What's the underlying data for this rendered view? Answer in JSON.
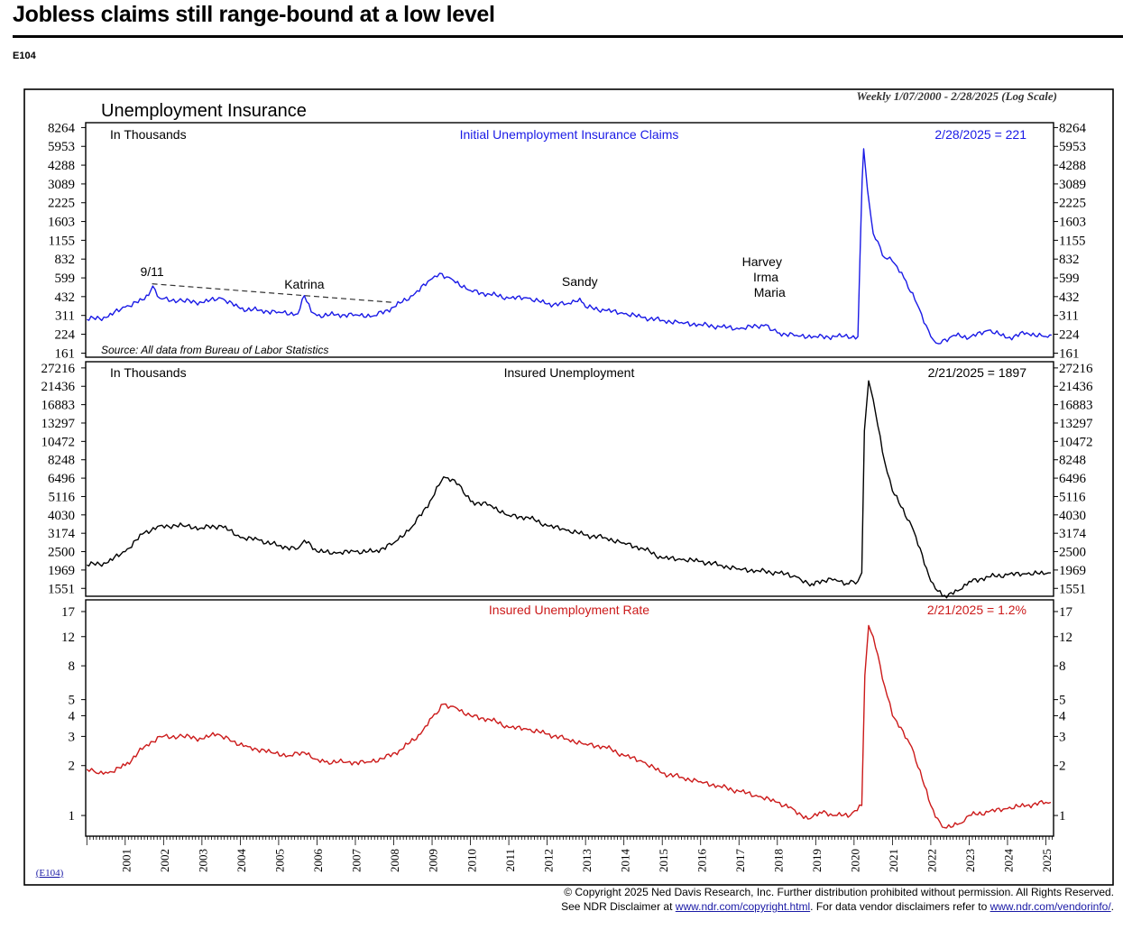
{
  "page": {
    "title": "Jobless claims still range-bound at a low level",
    "code": "E104",
    "code_link": "(E104)"
  },
  "figure": {
    "title": "Unemployment Insurance",
    "subtitle": "Weekly 1/07/2000 - 2/28/2025 (Log Scale)"
  },
  "footer": {
    "line1": "© Copyright 2025 Ned Davis Research, Inc.  Further distribution prohibited without permission.  All Rights Reserved.",
    "line2_prefix": "See NDR Disclaimer at ",
    "link1": "www.ndr.com/copyright.html",
    "line2_middle": ". For data vendor disclaimers refer to ",
    "link2": "www.ndr.com/vendorinfo/",
    "line2_suffix": "."
  },
  "chart_data": [
    {
      "type": "line",
      "title": "Initial Unemployment Insurance Claims",
      "unit_label": "In Thousands",
      "latest": "2/28/2025 = 221",
      "source": "Source: All data from Bureau of Labor Statistics",
      "color": "#1a1ae6",
      "scale": "log",
      "ylim": [
        150,
        9000
      ],
      "yticks": [
        8264,
        5953,
        4288,
        3089,
        2225,
        1603,
        1155,
        832,
        599,
        432,
        311,
        224,
        161
      ],
      "annotations": [
        {
          "label": "9/11",
          "x": 2001.7,
          "y": 540
        },
        {
          "label": "Katrina",
          "x": 2005.67,
          "y": 430
        },
        {
          "label": "Sandy",
          "x": 2012.85,
          "y": 440
        },
        {
          "label": "Harvey",
          "x": 2017.6,
          "y": 290
        },
        {
          "label": "Irma",
          "x": 2017.7,
          "y": 280
        },
        {
          "label": "Maria",
          "x": 2017.8,
          "y": 270
        }
      ],
      "trend_line": [
        [
          2001.7,
          540
        ],
        [
          2008.0,
          390
        ]
      ],
      "series": [
        {
          "name": "Initial Unemployment Insurance Claims",
          "points": [
            [
              2000.0,
              290
            ],
            [
              2000.5,
              300
            ],
            [
              2001.0,
              360
            ],
            [
              2001.5,
              410
            ],
            [
              2001.72,
              520
            ],
            [
              2001.9,
              420
            ],
            [
              2002.5,
              400
            ],
            [
              2003.0,
              390
            ],
            [
              2003.5,
              420
            ],
            [
              2004.0,
              350
            ],
            [
              2004.5,
              340
            ],
            [
              2005.0,
              330
            ],
            [
              2005.5,
              320
            ],
            [
              2005.67,
              440
            ],
            [
              2005.85,
              330
            ],
            [
              2006.0,
              310
            ],
            [
              2006.5,
              315
            ],
            [
              2007.0,
              315
            ],
            [
              2007.5,
              310
            ],
            [
              2008.0,
              360
            ],
            [
              2008.5,
              440
            ],
            [
              2009.0,
              590
            ],
            [
              2009.2,
              650
            ],
            [
              2009.5,
              590
            ],
            [
              2010.0,
              480
            ],
            [
              2010.5,
              450
            ],
            [
              2011.0,
              420
            ],
            [
              2011.5,
              420
            ],
            [
              2012.0,
              380
            ],
            [
              2012.5,
              380
            ],
            [
              2012.85,
              420
            ],
            [
              2013.0,
              360
            ],
            [
              2013.5,
              340
            ],
            [
              2014.0,
              320
            ],
            [
              2014.5,
              300
            ],
            [
              2015.0,
              285
            ],
            [
              2015.5,
              275
            ],
            [
              2016.0,
              265
            ],
            [
              2016.5,
              255
            ],
            [
              2017.0,
              245
            ],
            [
              2017.7,
              265
            ],
            [
              2018.0,
              230
            ],
            [
              2018.5,
              220
            ],
            [
              2019.0,
              215
            ],
            [
              2019.5,
              215
            ],
            [
              2020.1,
              215
            ],
            [
              2020.21,
              3300
            ],
            [
              2020.25,
              5700
            ],
            [
              2020.35,
              2800
            ],
            [
              2020.5,
              1300
            ],
            [
              2020.8,
              850
            ],
            [
              2021.0,
              800
            ],
            [
              2021.3,
              600
            ],
            [
              2021.7,
              350
            ],
            [
              2022.0,
              215
            ],
            [
              2022.2,
              190
            ],
            [
              2022.6,
              220
            ],
            [
              2023.0,
              210
            ],
            [
              2023.5,
              240
            ],
            [
              2024.0,
              210
            ],
            [
              2024.5,
              230
            ],
            [
              2025.0,
              215
            ],
            [
              2025.15,
              221
            ]
          ]
        }
      ]
    },
    {
      "type": "line",
      "title": "Insured Unemployment",
      "unit_label": "In Thousands",
      "latest": "2/21/2025 = 1897",
      "color": "#000000",
      "scale": "log",
      "ylim": [
        1400,
        29500
      ],
      "yticks": [
        27216,
        21436,
        16883,
        13297,
        10472,
        8248,
        6496,
        5116,
        4030,
        3174,
        2500,
        1969,
        1551
      ],
      "series": [
        {
          "name": "Insured Unemployment",
          "points": [
            [
              2000.0,
              2100
            ],
            [
              2000.5,
              2150
            ],
            [
              2001.0,
              2500
            ],
            [
              2001.5,
              3200
            ],
            [
              2001.9,
              3500
            ],
            [
              2002.5,
              3500
            ],
            [
              2003.0,
              3400
            ],
            [
              2003.5,
              3500
            ],
            [
              2004.0,
              3000
            ],
            [
              2004.5,
              2900
            ],
            [
              2005.0,
              2700
            ],
            [
              2005.5,
              2600
            ],
            [
              2005.67,
              2900
            ],
            [
              2006.0,
              2500
            ],
            [
              2006.5,
              2450
            ],
            [
              2007.0,
              2500
            ],
            [
              2007.5,
              2500
            ],
            [
              2008.0,
              2800
            ],
            [
              2008.5,
              3500
            ],
            [
              2009.0,
              5000
            ],
            [
              2009.3,
              6600
            ],
            [
              2009.7,
              6000
            ],
            [
              2010.0,
              4800
            ],
            [
              2010.5,
              4600
            ],
            [
              2011.0,
              4000
            ],
            [
              2011.5,
              3900
            ],
            [
              2012.0,
              3500
            ],
            [
              2012.5,
              3300
            ],
            [
              2013.0,
              3100
            ],
            [
              2013.5,
              3000
            ],
            [
              2014.0,
              2800
            ],
            [
              2014.5,
              2600
            ],
            [
              2015.0,
              2300
            ],
            [
              2015.5,
              2250
            ],
            [
              2016.0,
              2200
            ],
            [
              2016.5,
              2100
            ],
            [
              2017.0,
              2000
            ],
            [
              2017.5,
              1950
            ],
            [
              2018.0,
              1900
            ],
            [
              2018.5,
              1800
            ],
            [
              2018.85,
              1600
            ],
            [
              2019.0,
              1700
            ],
            [
              2019.5,
              1750
            ],
            [
              2019.8,
              1650
            ],
            [
              2020.1,
              1700
            ],
            [
              2020.2,
              1900
            ],
            [
              2020.27,
              12000
            ],
            [
              2020.38,
              23000
            ],
            [
              2020.5,
              18000
            ],
            [
              2020.8,
              8000
            ],
            [
              2021.0,
              5500
            ],
            [
              2021.5,
              3500
            ],
            [
              2022.0,
              1700
            ],
            [
              2022.3,
              1400
            ],
            [
              2022.7,
              1500
            ],
            [
              2023.0,
              1700
            ],
            [
              2023.5,
              1800
            ],
            [
              2024.0,
              1850
            ],
            [
              2024.5,
              1870
            ],
            [
              2025.0,
              1880
            ],
            [
              2025.13,
              1897
            ]
          ]
        }
      ]
    },
    {
      "type": "line",
      "title": "Insured Unemployment Rate",
      "latest": "2/21/2025 = 1.2%",
      "color": "#cc1a1a",
      "scale": "log",
      "ylim": [
        0.75,
        20
      ],
      "yticks": [
        17,
        12,
        8,
        5,
        4,
        3,
        2,
        1
      ],
      "series": [
        {
          "name": "Insured Unemployment Rate",
          "points": [
            [
              2000.0,
              1.9
            ],
            [
              2000.25,
              1.8
            ],
            [
              2000.55,
              1.8
            ],
            [
              2001.0,
              2.0
            ],
            [
              2001.5,
              2.6
            ],
            [
              2001.9,
              3.0
            ],
            [
              2002.5,
              3.0
            ],
            [
              2003.0,
              2.9
            ],
            [
              2003.4,
              3.1
            ],
            [
              2003.8,
              2.8
            ],
            [
              2004.2,
              2.6
            ],
            [
              2004.8,
              2.4
            ],
            [
              2005.3,
              2.3
            ],
            [
              2005.67,
              2.4
            ],
            [
              2005.9,
              2.2
            ],
            [
              2006.2,
              2.1
            ],
            [
              2006.8,
              2.1
            ],
            [
              2007.3,
              2.1
            ],
            [
              2007.7,
              2.2
            ],
            [
              2008.2,
              2.5
            ],
            [
              2008.7,
              3.1
            ],
            [
              2009.0,
              3.9
            ],
            [
              2009.3,
              4.7
            ],
            [
              2009.6,
              4.5
            ],
            [
              2010.0,
              4.0
            ],
            [
              2010.5,
              3.8
            ],
            [
              2011.0,
              3.4
            ],
            [
              2011.5,
              3.3
            ],
            [
              2012.0,
              3.1
            ],
            [
              2012.5,
              2.9
            ],
            [
              2013.0,
              2.7
            ],
            [
              2013.5,
              2.6
            ],
            [
              2014.0,
              2.3
            ],
            [
              2014.5,
              2.1
            ],
            [
              2015.0,
              1.8
            ],
            [
              2015.5,
              1.7
            ],
            [
              2016.0,
              1.6
            ],
            [
              2016.5,
              1.5
            ],
            [
              2017.0,
              1.4
            ],
            [
              2017.5,
              1.3
            ],
            [
              2018.0,
              1.2
            ],
            [
              2018.4,
              1.1
            ],
            [
              2018.8,
              0.95
            ],
            [
              2019.1,
              1.05
            ],
            [
              2019.5,
              1.0
            ],
            [
              2019.9,
              1.0
            ],
            [
              2020.2,
              1.15
            ],
            [
              2020.28,
              7.0
            ],
            [
              2020.38,
              14.0
            ],
            [
              2020.5,
              12.0
            ],
            [
              2020.8,
              6.0
            ],
            [
              2021.0,
              4.0
            ],
            [
              2021.5,
              2.6
            ],
            [
              2022.0,
              1.15
            ],
            [
              2022.3,
              0.85
            ],
            [
              2022.8,
              0.9
            ],
            [
              2023.0,
              1.0
            ],
            [
              2023.5,
              1.05
            ],
            [
              2024.0,
              1.1
            ],
            [
              2024.5,
              1.15
            ],
            [
              2025.0,
              1.2
            ],
            [
              2025.13,
              1.2
            ]
          ]
        }
      ]
    }
  ],
  "x_axis": {
    "xlim": [
      1999.97,
      2025.2
    ],
    "tick_labels": [
      "2001",
      "2002",
      "2003",
      "2004",
      "2005",
      "2006",
      "2007",
      "2008",
      "2009",
      "2010",
      "2011",
      "2012",
      "2013",
      "2014",
      "2015",
      "2016",
      "2017",
      "2018",
      "2019",
      "2020",
      "2021",
      "2022",
      "2023",
      "2024",
      "2025"
    ]
  }
}
